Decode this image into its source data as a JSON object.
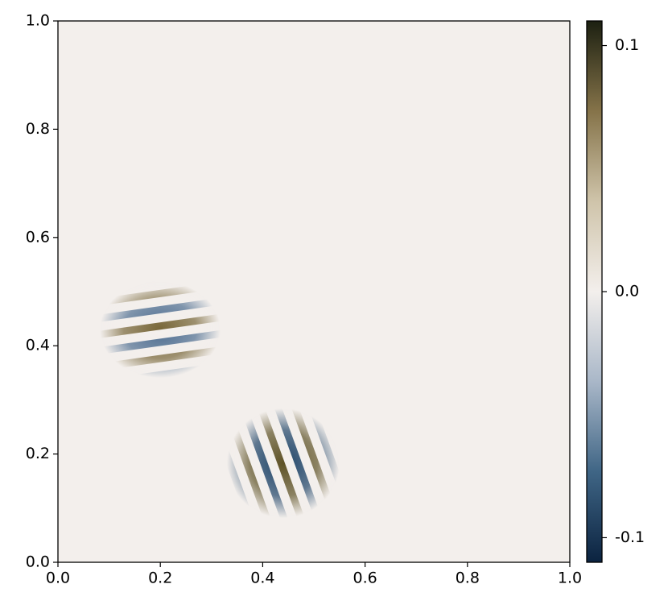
{
  "chart_data": {
    "type": "contourf",
    "xlim": [
      0,
      1
    ],
    "ylim": [
      0,
      1
    ],
    "xticks": [
      {
        "value": 0,
        "label": "0.0"
      },
      0.2,
      0.4,
      0.6,
      0.8,
      {
        "value": 1,
        "label": "1.0"
      }
    ],
    "yticks": [
      {
        "value": 0,
        "label": "0.0"
      },
      0.2,
      0.4,
      0.6,
      0.8,
      {
        "value": 1,
        "label": "1.0"
      }
    ],
    "clim": [
      -0.11,
      0.11
    ],
    "cticks": [
      -0.1,
      {
        "value": 0,
        "label": "0.0"
      },
      0.1
    ],
    "colormap": [
      "#0b2340",
      "#3f6585",
      "#a9b7c8",
      "#f3efec",
      "#cfc4aa",
      "#857349",
      "#1c2011"
    ],
    "background": "#f3efec"
  }
}
